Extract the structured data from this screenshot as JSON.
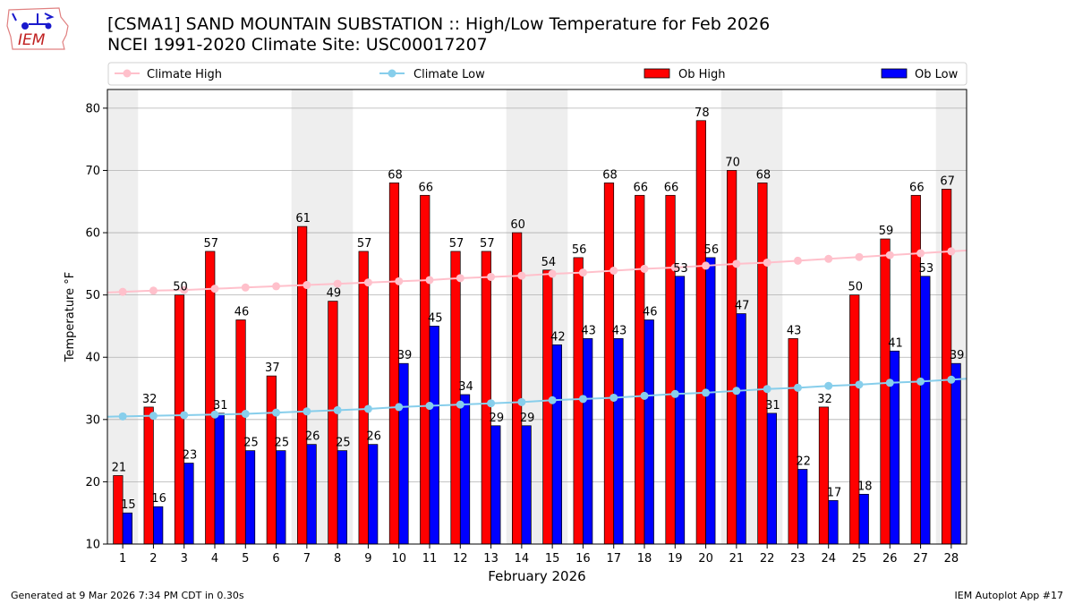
{
  "header": {
    "title_line1": "[CSMA1] SAND MOUNTAIN SUBSTATION :: High/Low Temperature for Feb 2026",
    "title_line2": "NCEI 1991-2020 Climate Site: USC00017207",
    "logo_text": "IEM"
  },
  "footer": {
    "left": "Generated at 9 Mar 2026 7:34 PM CDT in 0.30s",
    "right": "IEM Autoplot App #17"
  },
  "colors": {
    "ob_high": "#ff0000",
    "ob_low": "#0000ff",
    "climate_high": "#ffc0cb",
    "climate_low": "#87ceeb",
    "weekend_shade": "#eeeeee",
    "grid": "#b0b0b0"
  },
  "chart_data": {
    "type": "bar",
    "xlabel": "February 2026",
    "ylabel": "Temperature °F",
    "ylim": [
      10,
      83
    ],
    "yticks": [
      10,
      20,
      30,
      40,
      50,
      60,
      70,
      80
    ],
    "grid": "horizontal",
    "legend_position": "top",
    "categories": [
      "1",
      "2",
      "3",
      "4",
      "5",
      "6",
      "7",
      "8",
      "9",
      "10",
      "11",
      "12",
      "13",
      "14",
      "15",
      "16",
      "17",
      "18",
      "19",
      "20",
      "21",
      "22",
      "23",
      "24",
      "25",
      "26",
      "27",
      "28"
    ],
    "shaded_days": [
      1,
      7,
      8,
      14,
      15,
      21,
      22,
      28
    ],
    "series": [
      {
        "name": "Ob High",
        "kind": "bar",
        "color": "#ff0000",
        "values": [
          21,
          32,
          50,
          57,
          46,
          37,
          61,
          49,
          57,
          68,
          66,
          57,
          57,
          60,
          54,
          56,
          68,
          66,
          66,
          78,
          70,
          68,
          43,
          32,
          50,
          59,
          66,
          67
        ]
      },
      {
        "name": "Ob Low",
        "kind": "bar",
        "color": "#0000ff",
        "values": [
          15,
          16,
          23,
          31,
          25,
          25,
          26,
          25,
          26,
          39,
          45,
          34,
          29,
          29,
          42,
          43,
          43,
          46,
          53,
          56,
          47,
          31,
          22,
          17,
          18,
          41,
          53,
          39
        ]
      },
      {
        "name": "Climate High",
        "kind": "line",
        "color": "#ffc0cb",
        "values": [
          50.5,
          50.7,
          50.8,
          51.0,
          51.2,
          51.4,
          51.6,
          51.8,
          52.0,
          52.2,
          52.4,
          52.7,
          52.9,
          53.1,
          53.4,
          53.6,
          53.9,
          54.2,
          54.4,
          54.7,
          55.0,
          55.2,
          55.5,
          55.8,
          56.1,
          56.4,
          56.7,
          57.0
        ]
      },
      {
        "name": "Climate Low",
        "kind": "line",
        "color": "#87ceeb",
        "values": [
          30.5,
          30.6,
          30.7,
          30.8,
          30.9,
          31.1,
          31.3,
          31.5,
          31.7,
          32.0,
          32.2,
          32.4,
          32.6,
          32.8,
          33.1,
          33.3,
          33.5,
          33.8,
          34.1,
          34.3,
          34.6,
          34.9,
          35.1,
          35.4,
          35.6,
          35.9,
          36.1,
          36.4
        ]
      }
    ]
  }
}
